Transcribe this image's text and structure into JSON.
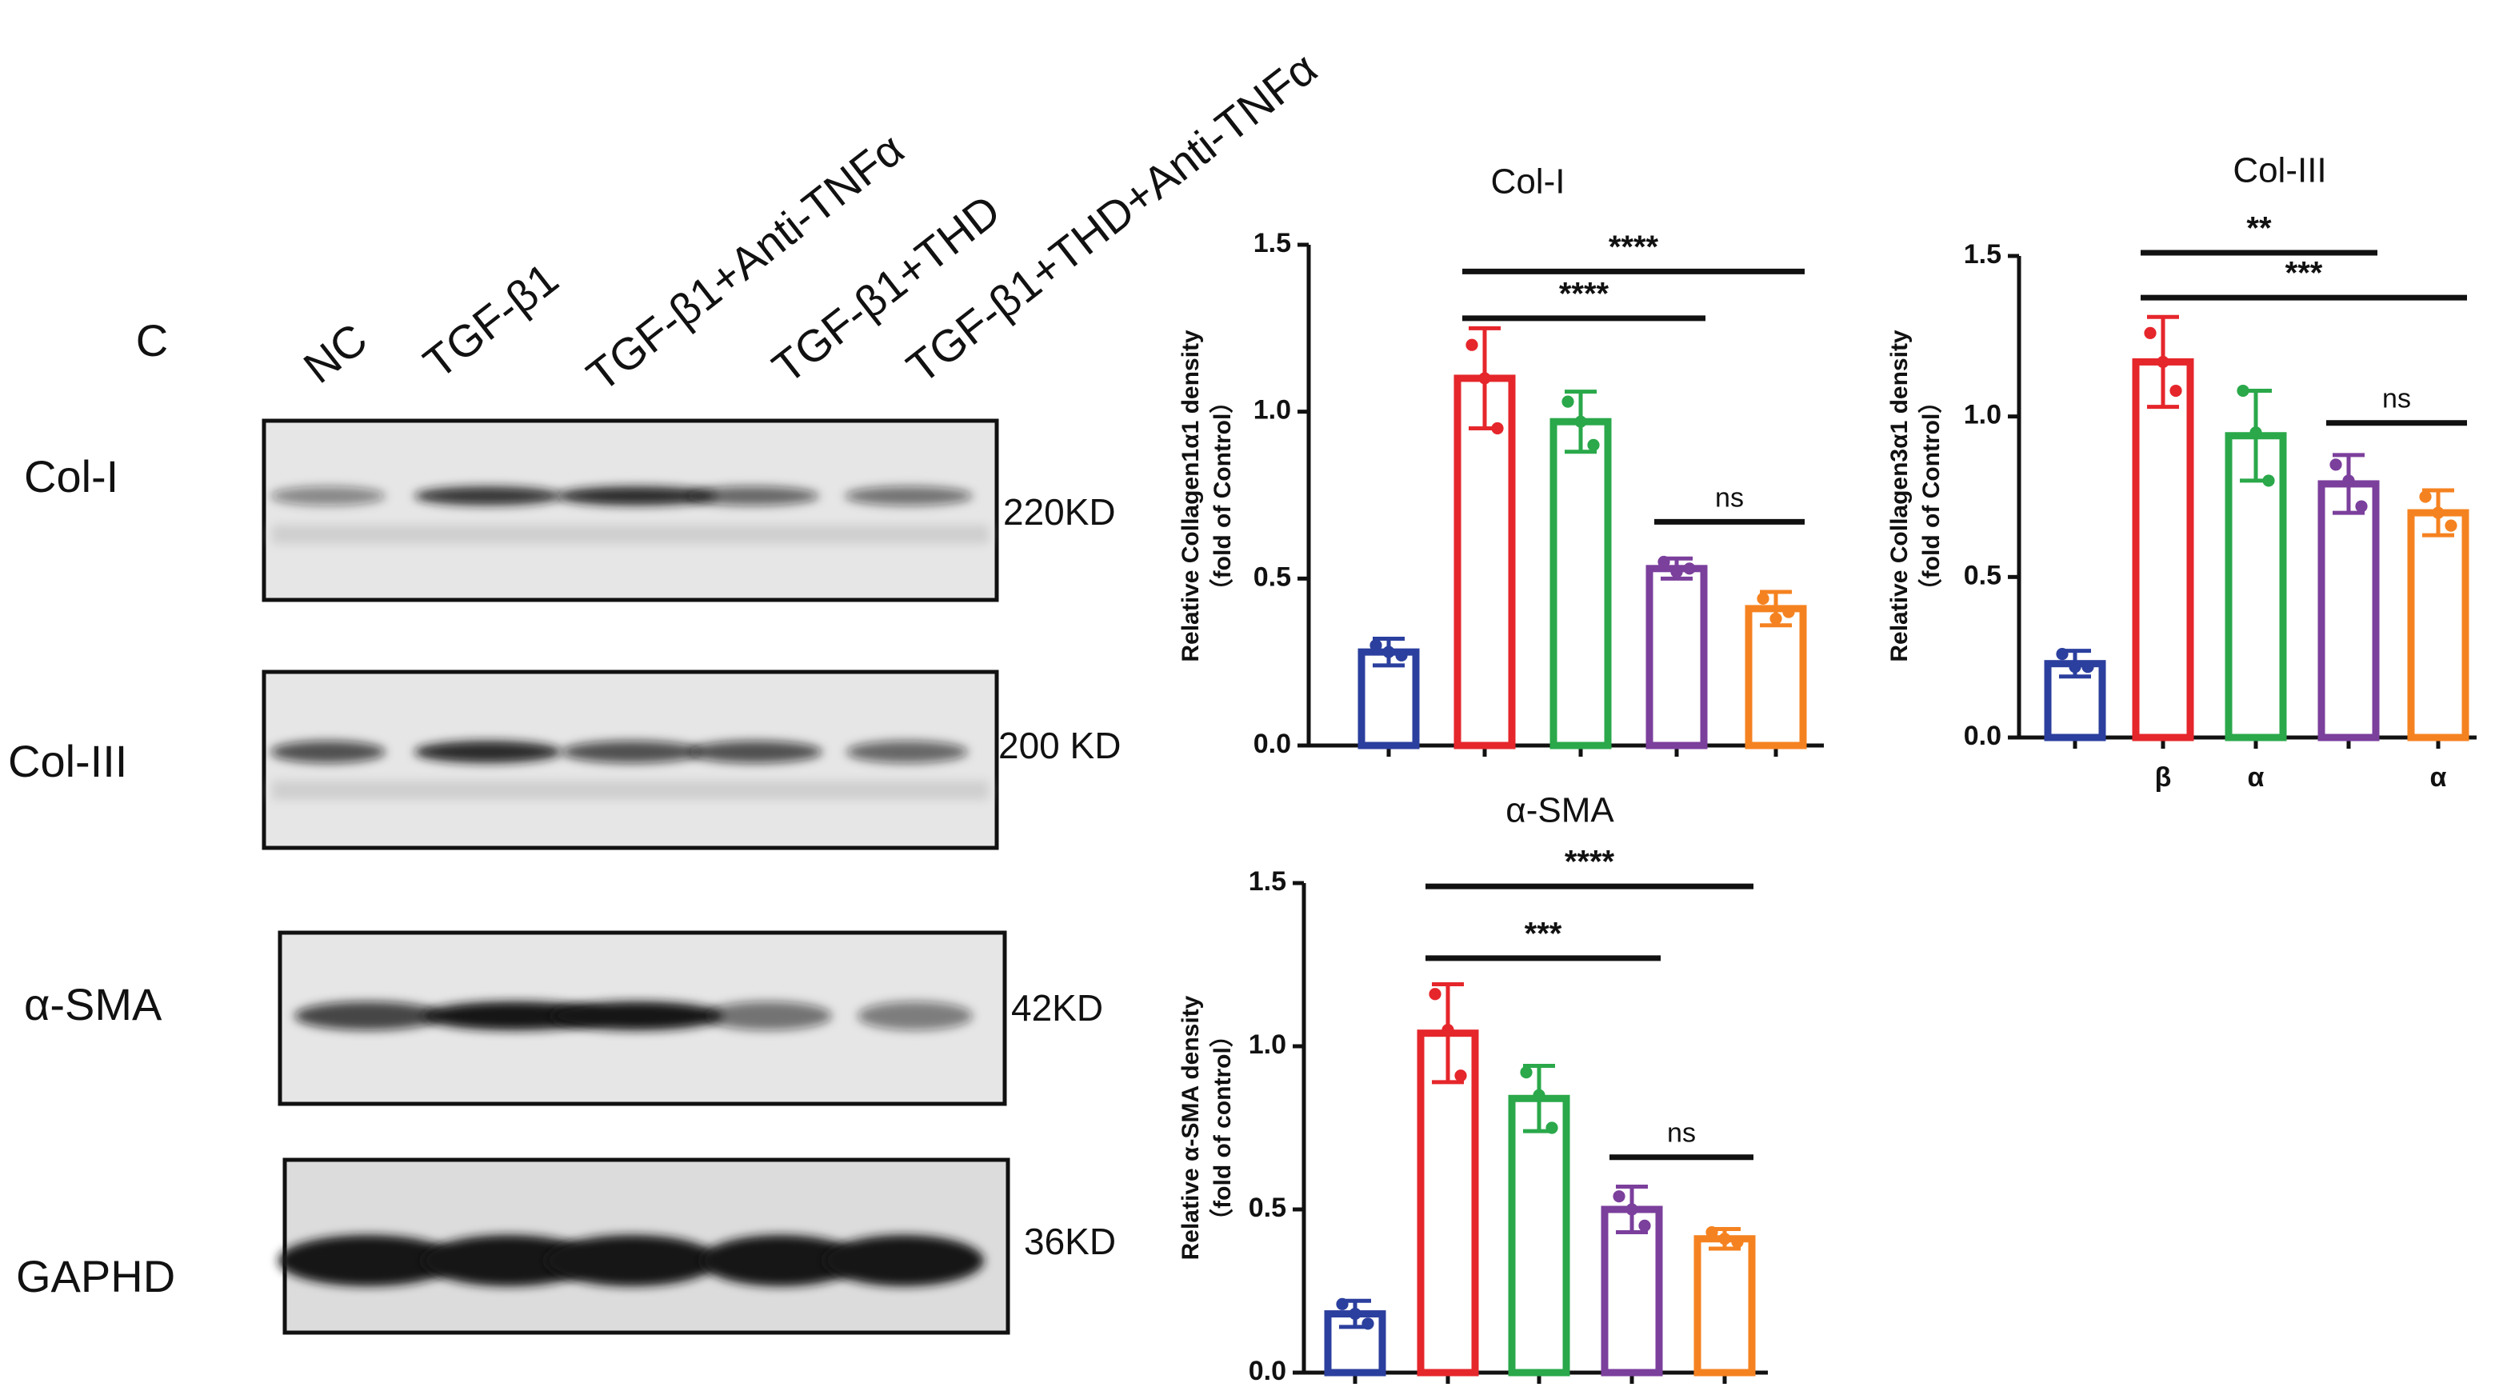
{
  "blot": {
    "panel": "C",
    "lanes": [
      "NC",
      "TGF-β1",
      "TGF-β1+Anti-TNFα",
      "TGF-β1+THD",
      "TGF-β1+THD+Anti-TNFα"
    ],
    "rows": [
      {
        "protein": "Col-I",
        "size": "220KD"
      },
      {
        "protein": "Col-III",
        "size": "200 KD"
      },
      {
        "protein": "α-SMA",
        "size": "42KD"
      },
      {
        "protein": "GAPHD",
        "size": "36KD"
      }
    ]
  },
  "chart_data": [
    {
      "type": "bar",
      "title": "Col-I",
      "ylabel": [
        "Relative Collagen1α1 density",
        "（fold of Control）"
      ],
      "categories": [
        null,
        null,
        null,
        null,
        null
      ],
      "values": [
        0.28,
        1.1,
        0.97,
        0.53,
        0.41
      ],
      "errors": [
        0.04,
        0.15,
        0.09,
        0.03,
        0.05
      ],
      "points": [
        [
          0.3,
          0.27,
          0.28
        ],
        [
          1.2,
          0.95,
          1.1
        ],
        [
          1.03,
          0.9,
          0.97
        ],
        [
          0.55,
          0.53,
          0.52
        ],
        [
          0.44,
          0.4,
          0.38
        ]
      ],
      "colors": [
        "#2b3f9e",
        "#e5262b",
        "#2aa84a",
        "#7b3f9c",
        "#f58220"
      ],
      "ylim": [
        0,
        1.5
      ],
      "yticks": [
        {
          "value": 0,
          "label": "0.0"
        },
        0.5,
        {
          "value": 1,
          "label": "1.0"
        },
        1.5
      ],
      "annotations": [
        {
          "label": "****",
          "y": 1.42
        },
        {
          "label": "****",
          "y": 1.28
        },
        {
          "label": "ns",
          "y": 0.67
        }
      ]
    },
    {
      "type": "bar",
      "title": "Col-III",
      "ylabel": [
        "Relative Collagen3α1 density",
        "（fold of Control）"
      ],
      "categories": [
        null,
        "β",
        "α",
        null,
        "α"
      ],
      "values": [
        0.23,
        1.17,
        0.94,
        0.79,
        0.7
      ],
      "errors": [
        0.04,
        0.14,
        0.14,
        0.09,
        0.07
      ],
      "points": [
        [
          0.26,
          0.22,
          0.22
        ],
        [
          1.26,
          1.08,
          1.17
        ],
        [
          1.08,
          0.8,
          0.95
        ],
        [
          0.85,
          0.72,
          0.8
        ],
        [
          0.75,
          0.66,
          0.7
        ]
      ],
      "colors": [
        "#2b3f9e",
        "#e5262b",
        "#2aa84a",
        "#7b3f9c",
        "#f58220"
      ],
      "ylim": [
        0,
        1.5
      ],
      "yticks": [
        {
          "value": 0,
          "label": "0.0"
        },
        0.5,
        {
          "value": 1,
          "label": "1.0"
        },
        1.5
      ],
      "annotations": [
        {
          "label": "**",
          "y": 1.51
        },
        {
          "label": "***",
          "y": 1.37
        },
        {
          "label": "ns",
          "y": 0.98
        }
      ]
    },
    {
      "type": "bar",
      "title": "α-SMA",
      "ylabel": [
        "Relative α-SMA density",
        "（fold of control）"
      ],
      "categories": [
        null,
        null,
        null,
        null,
        null
      ],
      "values": [
        0.18,
        1.04,
        0.84,
        0.5,
        0.41
      ],
      "errors": [
        0.04,
        0.15,
        0.1,
        0.07,
        0.03
      ],
      "points": [
        [
          0.21,
          0.15,
          0.18
        ],
        [
          1.16,
          0.91,
          1.05
        ],
        [
          0.92,
          0.75,
          0.85
        ],
        [
          0.54,
          0.45,
          0.5
        ],
        [
          0.43,
          0.4,
          0.41
        ]
      ],
      "colors": [
        "#2b3f9e",
        "#e5262b",
        "#2aa84a",
        "#7b3f9c",
        "#f58220"
      ],
      "ylim": [
        0,
        1.5
      ],
      "yticks": [
        {
          "value": 0,
          "label": "0.0"
        },
        0.5,
        {
          "value": 1,
          "label": "1.0"
        },
        1.5
      ],
      "annotations": [
        {
          "label": "****",
          "y": 1.49
        },
        {
          "label": "***",
          "y": 1.27
        },
        {
          "label": "ns",
          "y": 0.66
        }
      ]
    }
  ]
}
